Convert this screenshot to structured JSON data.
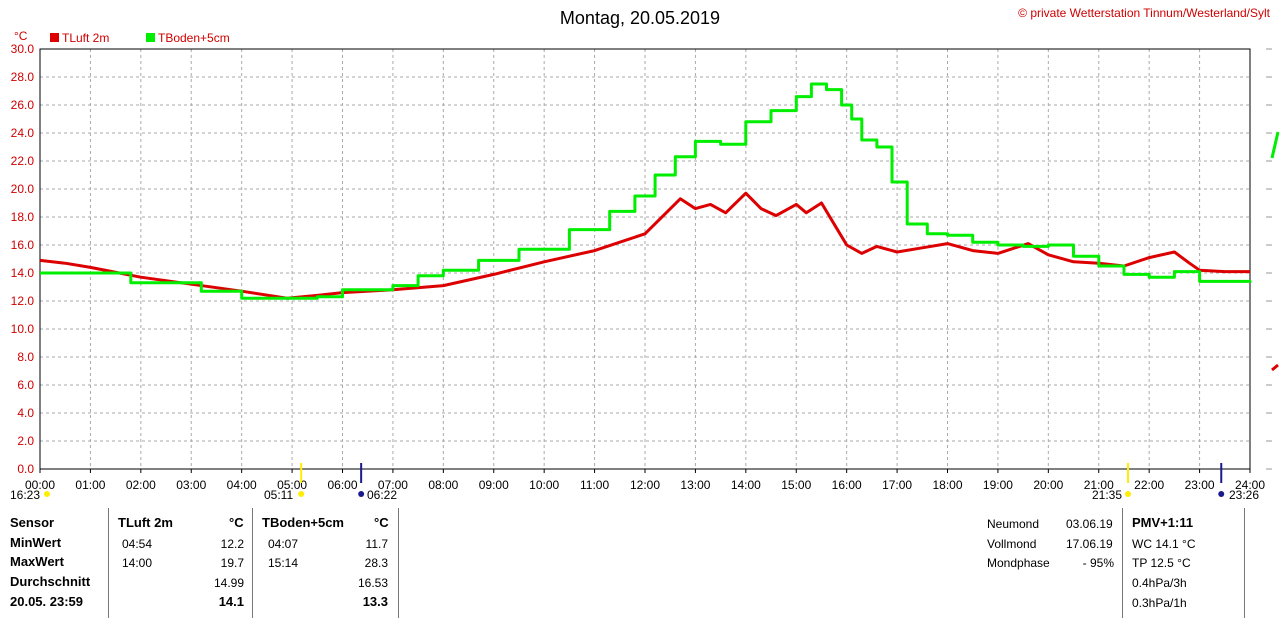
{
  "title": "Montag, 20.05.2019",
  "copyright": "© private Wetterstation Tinnum/Westerland/Sylt",
  "colors": {
    "red": "#dd0000",
    "green": "#00ee00"
  },
  "chart_data": {
    "type": "line",
    "ylabel": "°C",
    "ylim": [
      0,
      30
    ],
    "y_ticks": [
      "0.0",
      "2.0",
      "4.0",
      "6.0",
      "8.0",
      "10.0",
      "12.0",
      "14.0",
      "16.0",
      "18.0",
      "20.0",
      "22.0",
      "24.0",
      "26.0",
      "28.0",
      "30.0"
    ],
    "x_ticks": [
      "00:00",
      "01:00",
      "02:00",
      "03:00",
      "04:00",
      "05:00",
      "06:00",
      "07:00",
      "08:00",
      "09:00",
      "10:00",
      "11:00",
      "12:00",
      "13:00",
      "14:00",
      "15:00",
      "16:00",
      "17:00",
      "18:00",
      "19:00",
      "20:00",
      "21:00",
      "22:00",
      "23:00",
      "24:00"
    ],
    "grid": true,
    "legend": "top-left",
    "series": [
      {
        "name": "TLuft 2m",
        "color": "#dd0000",
        "x": [
          0,
          0.5,
          1,
          2,
          3,
          4,
          4.9,
          5.5,
          6,
          7,
          8,
          9,
          10,
          11,
          12,
          12.7,
          13,
          13.3,
          13.6,
          14,
          14.3,
          14.6,
          15,
          15.2,
          15.5,
          15.8,
          16,
          16.3,
          16.6,
          17,
          17.5,
          18,
          18.5,
          19,
          19.6,
          20,
          20.5,
          21,
          21.5,
          22,
          22.5,
          22.8,
          23,
          23.5,
          24
        ],
        "values": [
          14.9,
          14.7,
          14.4,
          13.7,
          13.2,
          12.7,
          12.2,
          12.4,
          12.6,
          12.8,
          13.1,
          13.9,
          14.8,
          15.6,
          16.8,
          19.3,
          18.6,
          18.9,
          18.3,
          19.7,
          18.6,
          18.1,
          18.9,
          18.3,
          19.0,
          17.2,
          16.0,
          15.4,
          15.9,
          15.5,
          15.8,
          16.1,
          15.6,
          15.4,
          16.1,
          15.3,
          14.8,
          14.7,
          14.5,
          15.1,
          15.5,
          14.7,
          14.2,
          14.1,
          14.1
        ]
      },
      {
        "name": "TBoden+5cm",
        "color": "#00ee00",
        "x": [
          0,
          1,
          1.8,
          2.5,
          3.2,
          4,
          4.9,
          5.5,
          6,
          7,
          7.5,
          8,
          8.7,
          9.5,
          10.5,
          11.3,
          11.8,
          12.2,
          12.6,
          13,
          13.5,
          14,
          14.5,
          15,
          15.3,
          15.6,
          15.9,
          16.1,
          16.3,
          16.6,
          16.9,
          17.2,
          17.6,
          18,
          18.5,
          19,
          19.5,
          20,
          20.5,
          21,
          21.5,
          22,
          22.5,
          23,
          24
        ],
        "values": [
          14.0,
          14.0,
          13.3,
          13.3,
          12.7,
          12.2,
          12.2,
          12.3,
          12.8,
          13.1,
          13.8,
          14.2,
          14.9,
          15.7,
          17.1,
          18.4,
          19.5,
          21.0,
          22.3,
          23.4,
          23.2,
          24.8,
          25.6,
          26.6,
          27.5,
          27.1,
          26.0,
          25.0,
          23.5,
          23.0,
          20.5,
          17.5,
          16.8,
          16.7,
          16.2,
          16.0,
          15.9,
          16.0,
          15.2,
          14.5,
          13.9,
          13.7,
          14.1,
          13.4,
          13.3
        ]
      }
    ]
  },
  "sun_moon": {
    "start_time": "16:23",
    "sunrise": "05:11",
    "moonset": "06:22",
    "sunset": "21:35",
    "moonrise": "23:26"
  },
  "table": {
    "headers": {
      "sensor": "Sensor",
      "col1": "TLuft 2m",
      "unit1": "°C",
      "col2": "TBoden+5cm",
      "unit2": "°C"
    },
    "rows": [
      {
        "label": "MinWert",
        "t1": "04:54",
        "v1": "12.2",
        "t2": "04:07",
        "v2": "11.7"
      },
      {
        "label": "MaxWert",
        "t1": "14:00",
        "v1": "19.7",
        "t2": "15:14",
        "v2": "28.3"
      },
      {
        "label": "Durchschnitt",
        "t1": "",
        "v1": "14.99",
        "t2": "",
        "v2": "16.53"
      },
      {
        "label": "20.05. 23:59",
        "t1": "",
        "v1": "14.1",
        "t2": "",
        "v2": "13.3"
      }
    ]
  },
  "moon": {
    "new_label": "Neumond",
    "new_date": "03.06.19",
    "full_label": "Vollmond",
    "full_date": "17.06.19",
    "phase_label": "Mondphase",
    "phase_value": "- 95%"
  },
  "pmv": {
    "title": "PMV+1:11",
    "wc": "WC 14.1 °C",
    "tp": "TP 12.5 °C",
    "p3h": "0.4hPa/3h",
    "p1h": "0.3hPa/1h"
  }
}
